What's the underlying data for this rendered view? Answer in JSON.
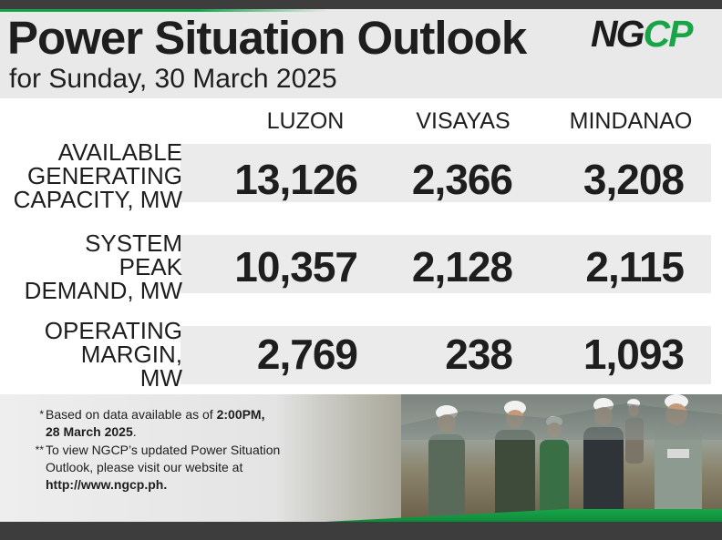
{
  "header": {
    "title": "Power Situation Outlook",
    "subtitle": "for Sunday, 30 March 2025",
    "logo_text_a": "NG",
    "logo_text_b": "CP",
    "logo_alt": "NGCP"
  },
  "table": {
    "columns": [
      "LUZON",
      "VISAYAS",
      "MINDANAO"
    ],
    "rows": [
      {
        "label_lines": [
          "AVAILABLE",
          "GENERATING",
          "CAPACITY, MW"
        ],
        "values": [
          "13,126",
          "2,366",
          "3,208"
        ]
      },
      {
        "label_lines": [
          "SYSTEM",
          "PEAK",
          "DEMAND, MW"
        ],
        "values": [
          "10,357",
          "2,128",
          "2,115"
        ]
      },
      {
        "label_lines": [
          "OPERATING",
          "MARGIN,",
          "MW"
        ],
        "values": [
          "2,769",
          "238",
          "1,093"
        ]
      }
    ]
  },
  "notes": [
    {
      "mark": "*",
      "text_a": "Based on data available as of ",
      "bold_a": "2:00PM,",
      "bold_b": "28 March 2025",
      "text_b": "."
    },
    {
      "mark": "**",
      "text_a": "To view NGCP’s updated Power Situation Outlook, please visit our website at",
      "bold_a": "http://www.ngcp.ph",
      "text_b": "."
    }
  ],
  "colors": {
    "brand_green": "#18a548",
    "dark": "#3d3d3d",
    "band": "#ebebeb"
  }
}
